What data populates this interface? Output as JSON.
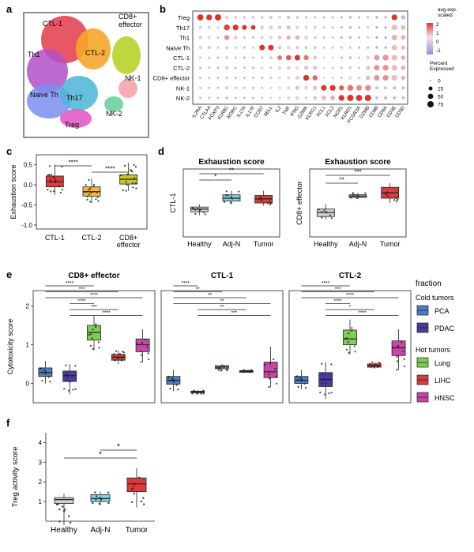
{
  "panels": {
    "a": "a",
    "b": "b",
    "c": "c",
    "d": "d",
    "e": "e",
    "f": "f"
  },
  "colors": {
    "healthy": "#cfcfcf",
    "adjn": "#7fcfdd",
    "tumor": "#d93c3c",
    "ctl1": "#d93c3c",
    "ctl2": "#f7b733",
    "cd8": "#c8c42a",
    "pca": "#4a7fc1",
    "pdac": "#4b3a9c",
    "lung": "#7ccf52",
    "lihc": "#d93c3c",
    "hnsc": "#c846a8"
  },
  "umap": {
    "labels": [
      "CTL-1",
      "CD8+\neffector",
      "Th1",
      "CTL-2",
      "NK-1",
      "Naive Th",
      "Th17",
      "NK-2",
      "Treg"
    ]
  },
  "chart_data": [
    {
      "panel": "b",
      "type": "dotplot",
      "rows": [
        "Treg",
        "Th17",
        "Th1",
        "Naive Th",
        "CTL-1",
        "CTL-2",
        "CD8+ effector",
        "NK-1",
        "NK-2"
      ],
      "genes": [
        "IL2RA",
        "CTLA4",
        "FOXP3",
        "KLRB1",
        "RORC",
        "IL17A",
        "IL17F",
        "CCR7",
        "SELL",
        "IL2",
        "TNF",
        "IFNG",
        "GZMK",
        "KLRG1",
        "XCL1",
        "XCL2",
        "NCR1",
        "KLRD1",
        "FCGR3A",
        "GZMB",
        "CD8B",
        "CD8A",
        "CD3E",
        "CD3D"
      ],
      "legend_expr_title": "avg.exp.\nscaled",
      "legend_expr_ticks": [
        "2",
        "1",
        "0",
        "-1"
      ],
      "legend_pct_title": "Percent\nExpressed",
      "legend_pct_ticks": [
        "0",
        "25",
        "50",
        "75"
      ],
      "values": [
        [
          2,
          2,
          2,
          0.2,
          -0.5,
          -0.5,
          -0.5,
          -0.3,
          -0.3,
          -0.2,
          -0.4,
          -0.4,
          -0.6,
          -0.5,
          -0.5,
          -0.5,
          -0.6,
          -0.5,
          -0.6,
          -0.5,
          -0.8,
          -0.8,
          2,
          -0.5
        ],
        [
          -0.3,
          -0.3,
          -0.3,
          1.8,
          2,
          2,
          2,
          0.3,
          0.3,
          0.3,
          0.5,
          -0.2,
          -0.3,
          -0.3,
          -0.4,
          -0.4,
          -0.6,
          -0.5,
          -0.6,
          -0.5,
          -0.8,
          -0.8,
          0.4,
          0.5
        ],
        [
          0.3,
          0.2,
          -0.4,
          0.9,
          0.3,
          -0.5,
          -0.5,
          -0.2,
          -0.2,
          0.4,
          0.7,
          0.6,
          0.2,
          -0.2,
          -0.4,
          -0.4,
          -0.6,
          -0.5,
          -0.6,
          -0.4,
          -0.8,
          -0.8,
          0.5,
          0.6
        ],
        [
          -0.3,
          -0.4,
          -0.4,
          -0.3,
          -0.4,
          -0.5,
          -0.5,
          2,
          2,
          0.3,
          -0.2,
          -0.4,
          -0.4,
          -0.4,
          -0.4,
          -0.4,
          -0.6,
          -0.5,
          -0.6,
          -0.6,
          -0.8,
          -0.8,
          0.4,
          0.5
        ],
        [
          -0.5,
          -0.5,
          -0.5,
          -0.3,
          -0.5,
          -0.5,
          -0.5,
          -0.2,
          -0.3,
          1.2,
          1.6,
          2,
          1.2,
          0.4,
          -0.2,
          -0.2,
          -0.5,
          -0.3,
          -0.5,
          0.2,
          0.8,
          0.9,
          0.4,
          0.6
        ],
        [
          -0.5,
          -0.5,
          -0.5,
          -0.4,
          -0.5,
          -0.5,
          -0.5,
          -0.1,
          -0.2,
          -0.2,
          -0.3,
          -0.1,
          0.3,
          0.4,
          -0.2,
          -0.3,
          -0.5,
          -0.2,
          -0.4,
          0.4,
          0.9,
          0.9,
          0.4,
          0.6
        ],
        [
          -0.5,
          -0.5,
          -0.5,
          -0.3,
          -0.5,
          -0.5,
          -0.5,
          -0.3,
          -0.3,
          -0.2,
          -0.1,
          0.3,
          2,
          1.4,
          -0.2,
          -0.3,
          -0.5,
          -0.1,
          -0.3,
          0.5,
          0.9,
          0.9,
          0.4,
          0.5
        ],
        [
          -0.5,
          -0.5,
          -0.5,
          -0.4,
          -0.5,
          -0.5,
          -0.5,
          -0.4,
          -0.3,
          -0.3,
          -0.2,
          0.4,
          0.2,
          0.4,
          2,
          2,
          1.5,
          1.2,
          1,
          1,
          -0.5,
          -0.4,
          -0.6,
          -0.6
        ],
        [
          -0.5,
          -0.5,
          -0.5,
          -0.4,
          -0.5,
          -0.5,
          -0.5,
          -0.4,
          -0.3,
          -0.3,
          -0.3,
          0.2,
          -0.3,
          0.3,
          0.5,
          0.6,
          2,
          2,
          2,
          2,
          -0.5,
          -0.5,
          -0.6,
          -0.6
        ]
      ],
      "percents": [
        [
          70,
          60,
          75,
          20,
          5,
          5,
          5,
          10,
          15,
          10,
          15,
          10,
          5,
          5,
          5,
          5,
          5,
          10,
          5,
          5,
          5,
          5,
          60,
          30
        ],
        [
          10,
          10,
          5,
          65,
          60,
          40,
          35,
          20,
          20,
          20,
          25,
          15,
          10,
          10,
          5,
          5,
          5,
          10,
          5,
          5,
          5,
          5,
          60,
          30
        ],
        [
          15,
          10,
          5,
          45,
          20,
          5,
          5,
          15,
          15,
          20,
          25,
          30,
          25,
          10,
          5,
          5,
          5,
          10,
          5,
          5,
          5,
          5,
          60,
          30
        ],
        [
          10,
          10,
          5,
          10,
          5,
          5,
          5,
          55,
          55,
          20,
          15,
          10,
          10,
          10,
          5,
          5,
          5,
          5,
          5,
          5,
          5,
          5,
          55,
          25
        ],
        [
          5,
          5,
          5,
          10,
          5,
          5,
          5,
          10,
          10,
          35,
          45,
          55,
          45,
          20,
          5,
          5,
          5,
          15,
          5,
          20,
          55,
          60,
          60,
          30
        ],
        [
          5,
          5,
          5,
          10,
          5,
          5,
          5,
          10,
          10,
          15,
          15,
          20,
          30,
          25,
          5,
          5,
          5,
          15,
          5,
          25,
          55,
          60,
          60,
          30
        ],
        [
          5,
          5,
          5,
          10,
          5,
          5,
          5,
          10,
          10,
          10,
          15,
          25,
          60,
          45,
          5,
          5,
          5,
          20,
          10,
          30,
          55,
          60,
          60,
          30
        ],
        [
          5,
          5,
          5,
          10,
          5,
          5,
          5,
          5,
          5,
          5,
          15,
          25,
          20,
          30,
          55,
          60,
          45,
          65,
          55,
          60,
          10,
          15,
          10,
          10
        ],
        [
          5,
          5,
          5,
          10,
          5,
          5,
          5,
          5,
          5,
          5,
          10,
          20,
          10,
          25,
          30,
          35,
          60,
          75,
          70,
          75,
          10,
          15,
          10,
          10
        ]
      ]
    },
    {
      "panel": "c",
      "type": "box",
      "ylabel": "Exhaustion score",
      "ylim": [
        -1.1,
        0.75
      ],
      "yticks": [
        0.5,
        0.0,
        -0.5,
        -1.0
      ],
      "ytick_labels": [
        "0.5",
        "0.0",
        "-0.5",
        "-1.0"
      ],
      "categories": [
        "CTL-1",
        "CTL-2",
        "CD8+\neffector"
      ],
      "boxes": [
        {
          "min": -0.25,
          "q1": -0.05,
          "median": 0.08,
          "q3": 0.22,
          "max": 0.5
        },
        {
          "min": -0.45,
          "q1": -0.28,
          "median": -0.17,
          "q3": -0.05,
          "max": 0.15
        },
        {
          "min": -0.15,
          "q1": 0.02,
          "median": 0.14,
          "q3": 0.25,
          "max": 0.55
        }
      ],
      "significance": [
        {
          "from": 0,
          "to": 1,
          "label": "****"
        },
        {
          "from": 1,
          "to": 2,
          "label": "****"
        }
      ]
    },
    {
      "panel": "d-left",
      "type": "box",
      "title": "Exhaustion score",
      "ylabel": "CTL-1",
      "ylim": [
        0,
        10
      ],
      "categories": [
        "Healthy",
        "Adj-N",
        "Tumor"
      ],
      "boxes": [
        {
          "min": 3.2,
          "q1": 3.7,
          "median": 4.1,
          "q3": 4.4,
          "max": 4.8
        },
        {
          "min": 4.8,
          "q1": 5.3,
          "median": 5.7,
          "q3": 6.2,
          "max": 6.8
        },
        {
          "min": 4.6,
          "q1": 5.0,
          "median": 5.6,
          "q3": 6.1,
          "max": 6.8
        }
      ],
      "significance": [
        {
          "from": 0,
          "to": 1,
          "label": "*"
        },
        {
          "from": 0,
          "to": 2,
          "label": "**"
        }
      ]
    },
    {
      "panel": "d-right",
      "type": "box",
      "title": "Exhaustion score",
      "ylabel": "CD8+ effector",
      "ylim": [
        0,
        10
      ],
      "categories": [
        "Healthy",
        "Adj-N",
        "Tumor"
      ],
      "boxes": [
        {
          "min": 2.6,
          "q1": 3.0,
          "median": 3.6,
          "q3": 4.1,
          "max": 4.8
        },
        {
          "min": 5.6,
          "q1": 5.8,
          "median": 6.0,
          "q3": 6.2,
          "max": 6.5
        },
        {
          "min": 5.0,
          "q1": 5.7,
          "median": 6.5,
          "q3": 7.3,
          "max": 7.9
        }
      ],
      "significance": [
        {
          "from": 0,
          "to": 1,
          "label": "**"
        },
        {
          "from": 0,
          "to": 2,
          "label": "***"
        }
      ]
    },
    {
      "panel": "e",
      "type": "box-multi",
      "ylabel": "Cytotoxicity score",
      "ylim": [
        -0.5,
        2.4
      ],
      "yticks": [
        0,
        1,
        2
      ],
      "legend_title": "fraction",
      "legend_groups": [
        {
          "title": "Cold tumors",
          "items": [
            "PCA",
            "PDAC"
          ]
        },
        {
          "title": "Hot tumors",
          "items": [
            "Lung",
            "LIHC",
            "HNSC"
          ]
        }
      ],
      "categories": [
        "PCA",
        "PDAC",
        "Lung",
        "LIHC",
        "HNSC"
      ],
      "subplots": [
        {
          "title": "CD8+ effector",
          "boxes": [
            {
              "min": 0.0,
              "q1": 0.18,
              "median": 0.28,
              "q3": 0.4,
              "max": 0.58
            },
            {
              "min": -0.28,
              "q1": 0.05,
              "median": 0.2,
              "q3": 0.32,
              "max": 0.5
            },
            {
              "min": 0.85,
              "q1": 1.12,
              "median": 1.32,
              "q3": 1.5,
              "max": 1.75
            },
            {
              "min": 0.5,
              "q1": 0.6,
              "median": 0.68,
              "q3": 0.75,
              "max": 0.85
            },
            {
              "min": 0.55,
              "q1": 0.82,
              "median": 1.0,
              "q3": 1.15,
              "max": 1.4
            }
          ],
          "significance": [
            {
              "from": 0,
              "to": 2,
              "label": "****"
            },
            {
              "from": 0,
              "to": 3,
              "label": "***"
            },
            {
              "from": 0,
              "to": 4,
              "label": "****"
            },
            {
              "from": 1,
              "to": 2,
              "label": "****"
            },
            {
              "from": 1,
              "to": 3,
              "label": "***"
            },
            {
              "from": 1,
              "to": 4,
              "label": "****"
            }
          ]
        },
        {
          "title": "CTL-1",
          "boxes": [
            {
              "min": -0.2,
              "q1": -0.02,
              "median": 0.08,
              "q3": 0.18,
              "max": 0.35
            },
            {
              "min": -0.28,
              "q1": -0.24,
              "median": -0.22,
              "q3": -0.2,
              "max": -0.18
            },
            {
              "min": 0.32,
              "q1": 0.38,
              "median": 0.42,
              "q3": 0.46,
              "max": 0.5
            },
            {
              "min": 0.27,
              "q1": 0.29,
              "median": 0.31,
              "q3": 0.33,
              "max": 0.35
            },
            {
              "min": -0.1,
              "q1": 0.15,
              "median": 0.3,
              "q3": 0.55,
              "max": 0.95
            }
          ],
          "significance": [
            {
              "from": 0,
              "to": 1,
              "label": "****"
            },
            {
              "from": 0,
              "to": 2,
              "label": "**"
            },
            {
              "from": 0,
              "to": 3,
              "label": "**"
            },
            {
              "from": 0,
              "to": 4,
              "label": "**"
            },
            {
              "from": 1,
              "to": 3,
              "label": "**"
            },
            {
              "from": 1,
              "to": 4,
              "label": "***"
            }
          ]
        },
        {
          "title": "CTL-2",
          "boxes": [
            {
              "min": -0.15,
              "q1": 0.0,
              "median": 0.08,
              "q3": 0.18,
              "max": 0.35
            },
            {
              "min": -0.4,
              "q1": -0.08,
              "median": 0.1,
              "q3": 0.28,
              "max": 0.55
            },
            {
              "min": 0.75,
              "q1": 1.0,
              "median": 1.15,
              "q3": 1.38,
              "max": 1.65
            },
            {
              "min": 0.38,
              "q1": 0.42,
              "median": 0.46,
              "q3": 0.5,
              "max": 0.55
            },
            {
              "min": 0.35,
              "q1": 0.72,
              "median": 0.92,
              "q3": 1.1,
              "max": 1.4
            }
          ],
          "significance": [
            {
              "from": 0,
              "to": 2,
              "label": "****"
            },
            {
              "from": 0,
              "to": 3,
              "label": "***"
            },
            {
              "from": 0,
              "to": 4,
              "label": "****"
            },
            {
              "from": 1,
              "to": 2,
              "label": "****"
            },
            {
              "from": 1,
              "to": 3,
              "label": "*"
            },
            {
              "from": 1,
              "to": 4,
              "label": "****"
            }
          ]
        }
      ]
    },
    {
      "panel": "f",
      "type": "box",
      "ylabel": "Treg activity score",
      "ylim": [
        0,
        4.5
      ],
      "yticks": [
        1,
        2,
        3,
        4
      ],
      "categories": [
        "Healthy",
        "Adj-N",
        "Tumor"
      ],
      "boxes": [
        {
          "min": -0.2,
          "q1": 0.9,
          "median": 1.1,
          "q3": 1.2,
          "max": 1.4
        },
        {
          "min": 0.8,
          "q1": 1.0,
          "median": 1.15,
          "q3": 1.35,
          "max": 1.5
        },
        {
          "min": 0.7,
          "q1": 1.5,
          "median": 1.9,
          "q3": 2.2,
          "max": 2.7
        }
      ],
      "significance": [
        {
          "from": 1,
          "to": 2,
          "label": "*"
        },
        {
          "from": 0,
          "to": 2,
          "label": "*"
        }
      ]
    }
  ]
}
